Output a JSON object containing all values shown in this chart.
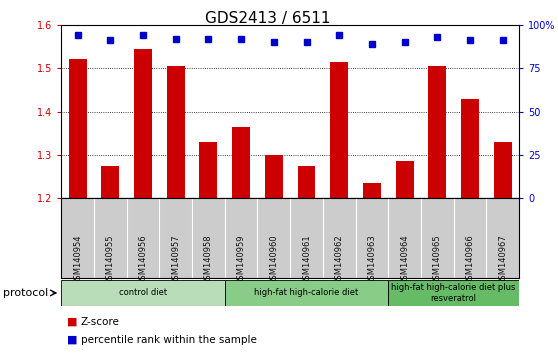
{
  "title": "GDS2413 / 6511",
  "samples": [
    "GSM140954",
    "GSM140955",
    "GSM140956",
    "GSM140957",
    "GSM140958",
    "GSM140959",
    "GSM140960",
    "GSM140961",
    "GSM140962",
    "GSM140963",
    "GSM140964",
    "GSM140965",
    "GSM140966",
    "GSM140967"
  ],
  "zscore": [
    1.52,
    1.275,
    1.545,
    1.505,
    1.33,
    1.365,
    1.3,
    1.275,
    1.515,
    1.235,
    1.285,
    1.505,
    1.43,
    1.33
  ],
  "percentile": [
    97,
    92,
    97,
    93,
    93,
    93,
    90,
    90,
    97,
    88,
    90,
    95,
    92,
    92
  ],
  "ylim": [
    1.2,
    1.6
  ],
  "yticks_left": [
    1.2,
    1.3,
    1.4,
    1.5,
    1.6
  ],
  "bar_color": "#cc0000",
  "dot_color": "#0000cc",
  "bar_width": 0.55,
  "protocol_groups": [
    {
      "label": "control diet",
      "start": 0,
      "end": 4,
      "color": "#b8ddb8"
    },
    {
      "label": "high-fat high-calorie diet",
      "start": 5,
      "end": 9,
      "color": "#88cc88"
    },
    {
      "label": "high-fat high-calorie diet plus\nresveratrol",
      "start": 10,
      "end": 13,
      "color": "#66bb66"
    }
  ],
  "xlabel_protocol": "protocol",
  "legend_zscore_label": "Z-score",
  "legend_percentile_label": "percentile rank within the sample",
  "title_fontsize": 11,
  "tick_fontsize": 7,
  "sample_fontsize": 6,
  "background_color": "#ffffff",
  "grid_color": "#000000",
  "sample_bg_color": "#cccccc",
  "xticklabel_color": "#111111"
}
